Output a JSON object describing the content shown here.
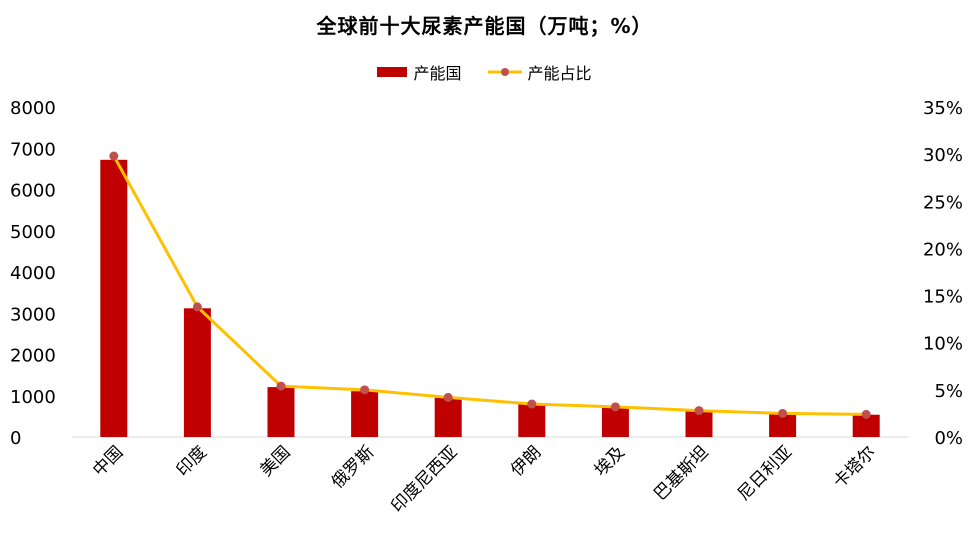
{
  "chart_data": {
    "type": "bar",
    "title": "全球前十大尿素产能国（万吨；%）",
    "categories": [
      "中国",
      "印度",
      "美国",
      "俄罗斯",
      "印度尼西亚",
      "伊朗",
      "埃及",
      "巴基斯坦",
      "尼日利亚",
      "卡塔尔"
    ],
    "series": [
      {
        "name": "产能国",
        "kind": "bar",
        "axis": "left",
        "color": "#c00000",
        "values": [
          6720,
          3120,
          1210,
          1110,
          950,
          790,
          730,
          640,
          570,
          540
        ]
      },
      {
        "name": "产能占比",
        "kind": "line",
        "axis": "right",
        "color": "#ffc000",
        "marker_color": "#c0504d",
        "values": [
          29.8,
          13.8,
          5.4,
          5.0,
          4.2,
          3.5,
          3.2,
          2.8,
          2.5,
          2.4
        ]
      }
    ],
    "y_left": {
      "min": 0,
      "max": 8000,
      "step": 1000,
      "ticks": [
        "0",
        "1000",
        "2000",
        "3000",
        "4000",
        "5000",
        "6000",
        "7000",
        "8000"
      ]
    },
    "y_right": {
      "min": 0,
      "max": 35,
      "step": 5,
      "ticks": [
        "0%",
        "5%",
        "10%",
        "15%",
        "20%",
        "25%",
        "30%",
        "35%"
      ]
    },
    "legend": "top",
    "grid": false
  }
}
